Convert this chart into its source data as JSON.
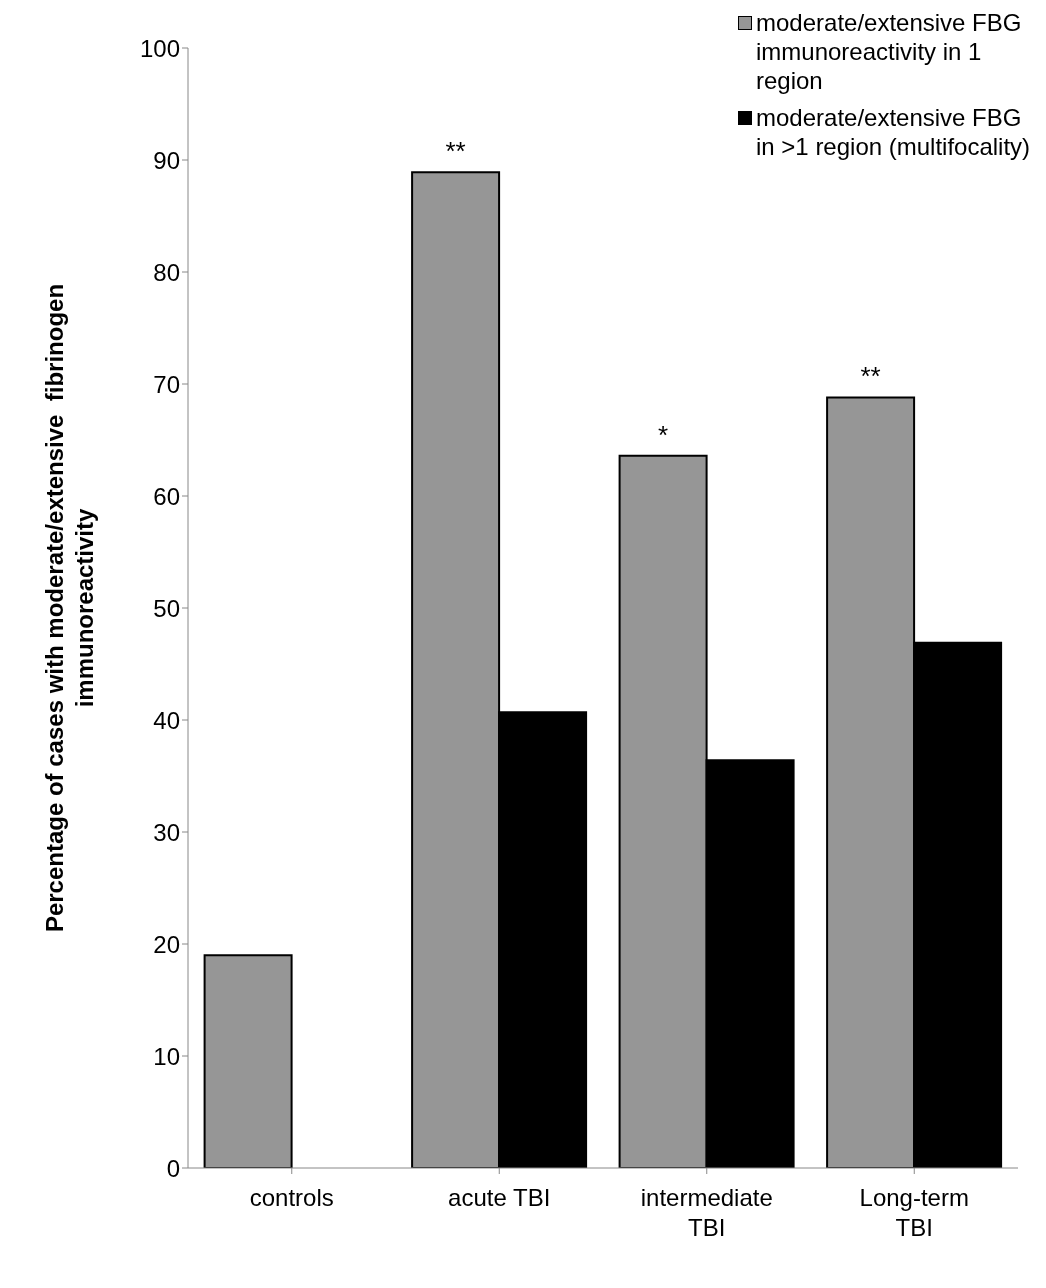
{
  "chart_data": {
    "type": "bar",
    "ylabel": "Percentage of cases with moderate/extensive  fibrinogen immunoreactivity",
    "categories": [
      "controls",
      "acute TBI",
      "intermediate TBI",
      "Long-term TBI"
    ],
    "series": [
      {
        "name": "moderate/extensive FBG immunoreactivity in 1 region",
        "color": "#969696",
        "values": [
          19,
          88.9,
          63.6,
          68.8
        ]
      },
      {
        "name": "moderate/extensive FBG in >1 region (multifocality)",
        "color": "#000000",
        "values": [
          0,
          40.7,
          36.4,
          46.9
        ]
      }
    ],
    "ylim": [
      0,
      100
    ],
    "yticks": [
      0,
      10,
      20,
      30,
      40,
      50,
      60,
      70,
      80,
      90,
      100
    ],
    "legend": "top right",
    "annotations": [
      {
        "text": "**",
        "x": "acute TBI",
        "y": 88.9
      },
      {
        "text": "*",
        "x": "intermediate TBI",
        "y": 63.6
      },
      {
        "text": "**",
        "x": "Long-term TBI",
        "y": 68.8
      }
    ]
  }
}
